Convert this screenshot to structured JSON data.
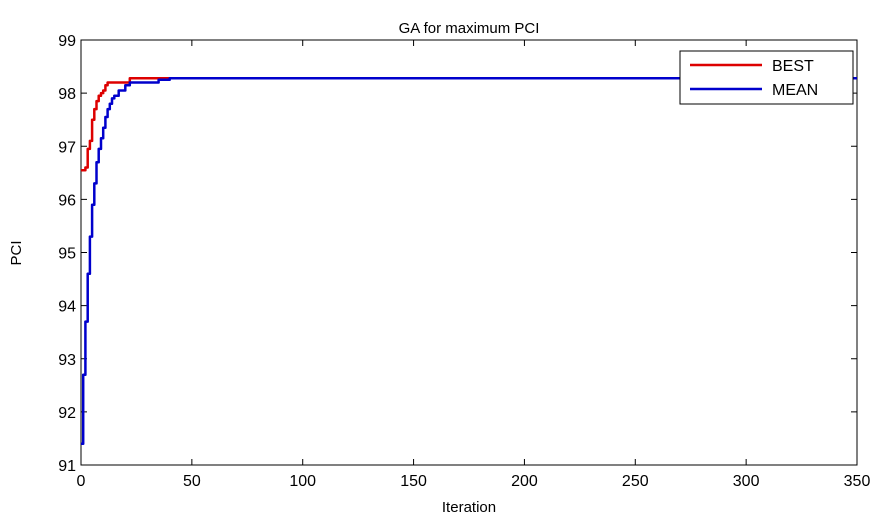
{
  "chart_data": {
    "type": "line",
    "title": "GA for maximum PCI",
    "xlabel": "Iteration",
    "ylabel": "PCI",
    "xlim": [
      0,
      350
    ],
    "ylim": [
      91,
      99
    ],
    "xticks": [
      0,
      50,
      100,
      150,
      200,
      250,
      300,
      350
    ],
    "yticks": [
      91,
      92,
      93,
      94,
      95,
      96,
      97,
      98,
      99
    ],
    "grid": false,
    "legend_position": "top-right",
    "series": [
      {
        "name": "BEST",
        "color": "#dd0000",
        "x": [
          0,
          1,
          2,
          3,
          4,
          5,
          6,
          7,
          8,
          9,
          10,
          11,
          12,
          13,
          14,
          15,
          20,
          22,
          25,
          30,
          40,
          60,
          100,
          200,
          300,
          350
        ],
        "y": [
          96.55,
          96.55,
          96.6,
          96.95,
          97.1,
          97.5,
          97.7,
          97.85,
          97.95,
          98.0,
          98.05,
          98.15,
          98.2,
          98.2,
          98.2,
          98.2,
          98.2,
          98.28,
          98.28,
          98.28,
          98.28,
          98.28,
          98.28,
          98.28,
          98.28,
          98.28
        ]
      },
      {
        "name": "MEAN",
        "color": "#0000cc",
        "x": [
          0,
          1,
          2,
          3,
          4,
          5,
          6,
          7,
          8,
          9,
          10,
          11,
          12,
          13,
          14,
          15,
          17,
          20,
          22,
          25,
          30,
          35,
          40,
          50,
          100,
          200,
          300,
          350
        ],
        "y": [
          91.4,
          92.7,
          93.7,
          94.6,
          95.3,
          95.9,
          96.3,
          96.7,
          96.95,
          97.15,
          97.35,
          97.55,
          97.7,
          97.8,
          97.9,
          97.95,
          98.05,
          98.15,
          98.2,
          98.2,
          98.2,
          98.25,
          98.28,
          98.28,
          98.28,
          98.28,
          98.28,
          98.28
        ]
      }
    ]
  }
}
